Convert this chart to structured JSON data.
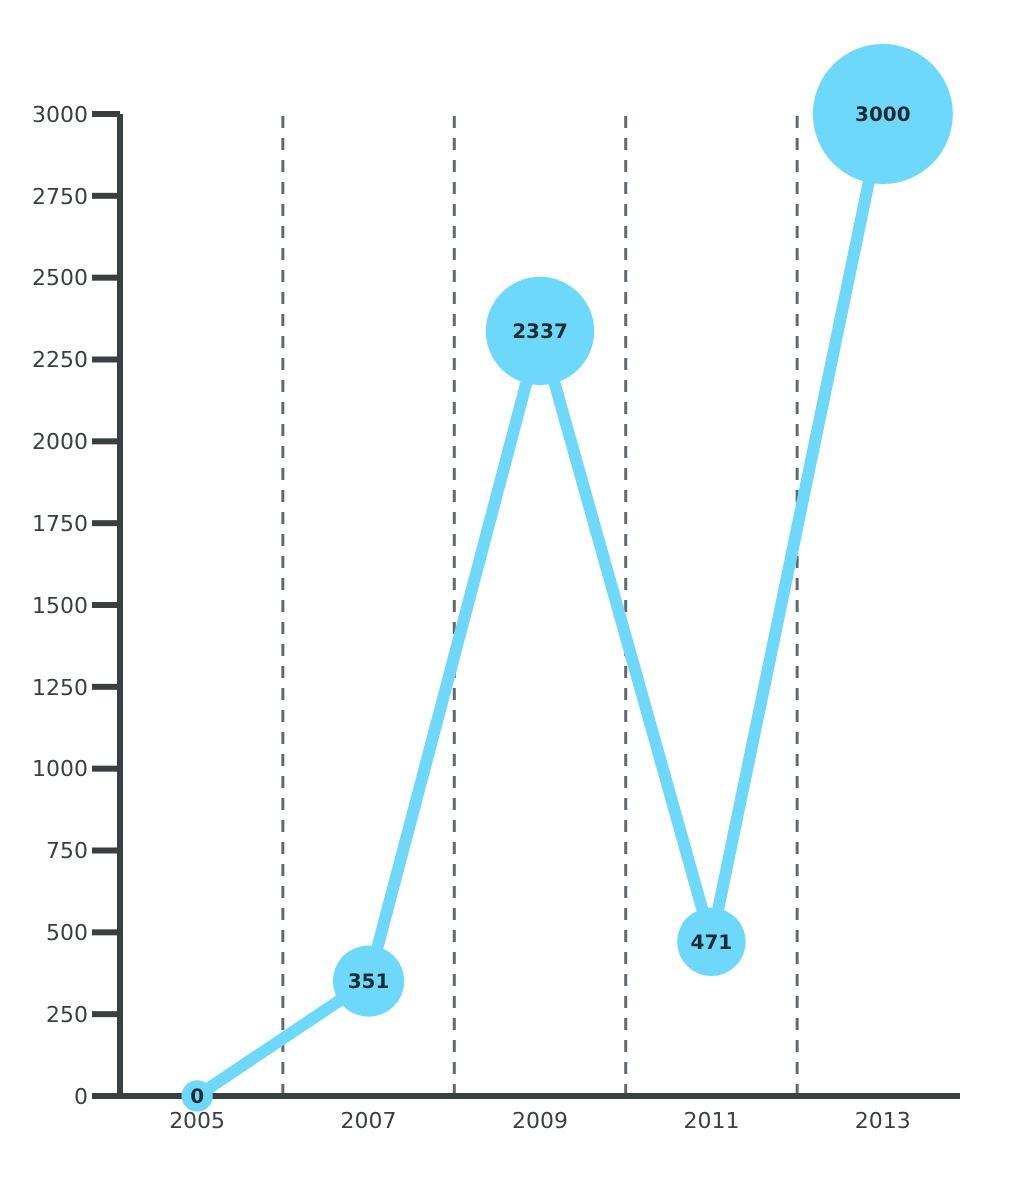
{
  "chart_data": {
    "type": "line",
    "x": [
      2005,
      2007,
      2009,
      2011,
      2013
    ],
    "xlim": [
      2004.1,
      2013.9
    ],
    "xticks": [
      2005,
      2007,
      2009,
      2011,
      2013
    ],
    "ylim": [
      0,
      3000
    ],
    "yticks": [
      0,
      250,
      500,
      750,
      1000,
      1250,
      1500,
      1750,
      2000,
      2250,
      2500,
      2750,
      3000
    ],
    "series": [
      {
        "color": "#6dd8fa",
        "values": [
          0,
          351,
          2337,
          471,
          3000
        ]
      },
      {
        "type": "bubble",
        "color": "#6dd8fa",
        "values": [
          0,
          351,
          2337,
          471,
          3000
        ],
        "sizes": [
          0.05,
          0.26,
          0.6,
          0.24,
          1
        ],
        "value_labels": [
          "0",
          "351",
          "2337",
          "471",
          "3000"
        ]
      }
    ],
    "ref_lines": [
      {
        "axis": "x",
        "value": 2006,
        "line_style": "dashed",
        "color": "#5f6b6f"
      },
      {
        "axis": "x",
        "value": 2008,
        "line_style": "dashed",
        "color": "#5f6b6f"
      },
      {
        "axis": "x",
        "value": 2010,
        "line_style": "dashed",
        "color": "#5f6b6f"
      },
      {
        "axis": "x",
        "value": 2012,
        "line_style": "dashed",
        "color": "#5f6b6f"
      }
    ],
    "legend": false
  }
}
